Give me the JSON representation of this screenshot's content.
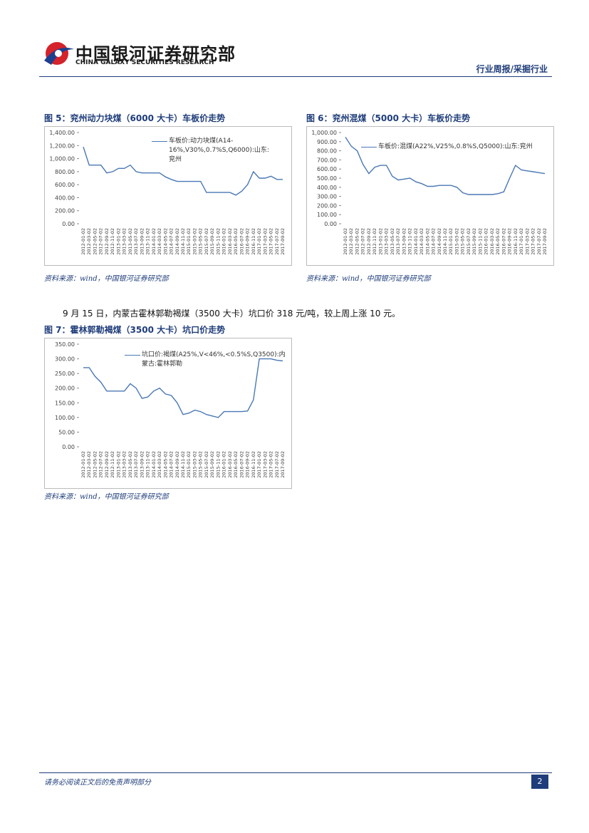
{
  "header": {
    "company_cn": "中国银河证券研究部",
    "company_en": "CHINA GALAXY SECURITIES RESEARCH",
    "section": "行业周报/采掘行业"
  },
  "chart_data": [
    {
      "type": "line",
      "title": "图 5：兖州动力块煤（6000 大卡）车板价走势",
      "source": "资料来源：wind，中国银河证券研究部",
      "x": [
        "2012-01-02",
        "2012-03-02",
        "2012-05-02",
        "2012-07-02",
        "2012-09-02",
        "2012-11-02",
        "2013-01-02",
        "2013-03-02",
        "2013-05-02",
        "2013-07-02",
        "2013-09-02",
        "2013-11-02",
        "2014-01-02",
        "2014-03-02",
        "2014-05-02",
        "2014-07-02",
        "2014-09-02",
        "2014-11-02",
        "2015-01-02",
        "2015-03-02",
        "2015-05-02",
        "2015-07-02",
        "2015-09-02",
        "2015-11-02",
        "2016-01-02",
        "2016-03-02",
        "2016-05-02",
        "2016-07-02",
        "2016-09-02",
        "2016-11-02",
        "2017-01-02",
        "2017-03-02",
        "2017-05-02",
        "2017-07-02",
        "2017-09-02"
      ],
      "series": [
        {
          "name": "车板价:动力块煤(A14-16%,V30%,0.7%S,Q6000):山东:兖州",
          "color": "#4a78b4",
          "values": [
            1180,
            900,
            900,
            900,
            780,
            800,
            850,
            850,
            900,
            800,
            780,
            780,
            780,
            780,
            720,
            680,
            650,
            650,
            650,
            650,
            650,
            480,
            480,
            480,
            480,
            480,
            440,
            500,
            600,
            800,
            700,
            700,
            730,
            680,
            680
          ]
        }
      ],
      "ylim": [
        0,
        1400
      ],
      "yticks": [
        {
          "value": 0,
          "label": "0.00"
        },
        {
          "value": 200,
          "label": "200.00"
        },
        {
          "value": 400,
          "label": "400.00"
        },
        {
          "value": 600,
          "label": "600.00"
        },
        {
          "value": 800,
          "label": "800.00"
        },
        {
          "value": 1000,
          "label": "1,000.00"
        },
        {
          "value": 1200,
          "label": "1,200.00"
        },
        {
          "value": 1400,
          "label": "1,400.00"
        }
      ]
    },
    {
      "type": "line",
      "title": "图 6：兖州混煤（5000 大卡）车板价走势",
      "source": "资料来源：wind，中国银河证券研究部",
      "x": [
        "2012-01-02",
        "2012-03-02",
        "2012-05-02",
        "2012-07-02",
        "2012-09-02",
        "2012-11-02",
        "2013-01-02",
        "2013-03-02",
        "2013-05-02",
        "2013-07-02",
        "2013-09-02",
        "2013-11-02",
        "2014-01-02",
        "2014-03-02",
        "2014-05-02",
        "2014-07-02",
        "2014-09-02",
        "2014-11-02",
        "2015-01-02",
        "2015-03-02",
        "2015-05-02",
        "2015-07-02",
        "2015-09-02",
        "2015-11-02",
        "2016-01-02",
        "2016-03-02",
        "2016-05-02",
        "2016-07-02",
        "2016-09-02",
        "2016-11-02",
        "2017-01-02",
        "2017-03-02",
        "2017-05-02",
        "2017-07-02",
        "2017-09-02"
      ],
      "series": [
        {
          "name": "车板价:混煤(A22%,V25%,0.8%S,Q5000):山东:兖州",
          "color": "#4a78b4",
          "values": [
            950,
            850,
            800,
            650,
            550,
            620,
            640,
            640,
            520,
            480,
            490,
            500,
            460,
            440,
            410,
            410,
            420,
            420,
            420,
            400,
            340,
            320,
            320,
            320,
            320,
            320,
            330,
            350,
            500,
            640,
            590,
            580,
            570,
            560,
            550
          ]
        }
      ],
      "ylim": [
        0,
        1000
      ],
      "yticks": [
        {
          "value": 0,
          "label": "0.00"
        },
        {
          "value": 100,
          "label": "100.00"
        },
        {
          "value": 200,
          "label": "200.00"
        },
        {
          "value": 300,
          "label": "300.00"
        },
        {
          "value": 400,
          "label": "400.00"
        },
        {
          "value": 500,
          "label": "500.00"
        },
        {
          "value": 600,
          "label": "600.00"
        },
        {
          "value": 700,
          "label": "700.00"
        },
        {
          "value": 800,
          "label": "800.00"
        },
        {
          "value": 900,
          "label": "900.00"
        },
        {
          "value": 1000,
          "label": "1,000.00"
        }
      ]
    },
    {
      "type": "line",
      "title": "图 7：霍林郭勒褐煤（3500 大卡）坑口价走势",
      "source": "资料来源：wind，中国银河证券研究部",
      "x": [
        "2012-01-02",
        "2012-03-02",
        "2012-05-02",
        "2012-07-02",
        "2012-09-02",
        "2012-11-02",
        "2013-01-02",
        "2013-03-02",
        "2013-05-02",
        "2013-07-02",
        "2013-09-02",
        "2013-11-02",
        "2014-01-02",
        "2014-03-02",
        "2014-05-02",
        "2014-07-02",
        "2014-09-02",
        "2014-11-02",
        "2015-01-02",
        "2015-03-02",
        "2015-05-02",
        "2015-07-02",
        "2015-09-02",
        "2015-11-02",
        "2016-01-02",
        "2016-03-02",
        "2016-05-02",
        "2016-07-02",
        "2016-09-02",
        "2016-11-02",
        "2017-01-02",
        "2017-03-02",
        "2017-05-02",
        "2017-07-02",
        "2017-09-02"
      ],
      "series": [
        {
          "name": "坑口价:褐煤(A25%,V<46%,<0.5%S,Q3500):内蒙古:霍林郭勒",
          "color": "#4a78b4",
          "values": [
            270,
            270,
            240,
            220,
            190,
            190,
            190,
            190,
            215,
            200,
            165,
            170,
            190,
            200,
            180,
            175,
            150,
            110,
            115,
            125,
            120,
            110,
            105,
            100,
            120,
            120,
            120,
            120,
            122,
            160,
            300,
            300,
            300,
            295,
            293
          ]
        }
      ],
      "ylim": [
        0,
        350
      ],
      "yticks": [
        {
          "value": 0,
          "label": "0.00"
        },
        {
          "value": 50,
          "label": "50.00"
        },
        {
          "value": 100,
          "label": "100.00"
        },
        {
          "value": 150,
          "label": "150.00"
        },
        {
          "value": 200,
          "label": "200.00"
        },
        {
          "value": 250,
          "label": "250.00"
        },
        {
          "value": 300,
          "label": "300.00"
        },
        {
          "value": 350,
          "label": "350.00"
        }
      ]
    }
  ],
  "paragraph": "9 月 15 日，内蒙古霍林郭勒褐煤（3500 大卡）坑口价 318 元/吨，较上周上涨 10 元。",
  "footer": {
    "disclaimer": "请务必阅读正文后的免责声明部分",
    "page": "2"
  }
}
